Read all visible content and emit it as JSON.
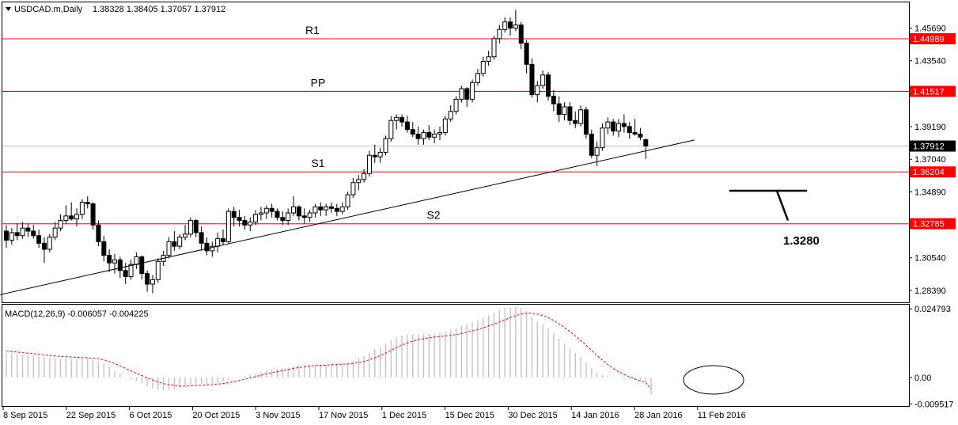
{
  "chart_data": {
    "type": "candlestick",
    "symbol_header": "USDCAD.m,Daily",
    "ohlc_header": "1.38328 1.38405 1.37057 1.37912",
    "y_ticks": [
      "1.45690",
      "1.43540",
      "1.39190",
      "1.37040",
      "1.34890",
      "1.30540",
      "1.28390"
    ],
    "x_ticks": [
      "8 Sep 2015",
      "22 Sep 2015",
      "6 Oct 2015",
      "20 Oct 2015",
      "3 Nov 2015",
      "17 Nov 2015",
      "1 Dec 2015",
      "15 Dec 2015",
      "30 Dec 2015",
      "14 Jan 2016",
      "28 Jan 2016",
      "11 Feb 2016"
    ],
    "levels": [
      {
        "name": "R1",
        "value": 1.44989,
        "tag": "1.44989",
        "color": "#ff0000"
      },
      {
        "name": "PP",
        "value": 1.41517,
        "tag": "1.41517",
        "color": "#ff0000"
      },
      {
        "name": "S1",
        "value": 1.36204,
        "tag": "1.36204",
        "color": "#ff0000"
      },
      {
        "name": "S2",
        "value": 1.32785,
        "tag": "1.32785",
        "color": "#ff0000"
      }
    ],
    "current_price": {
      "value": 1.37912,
      "tag": "1.37912",
      "color": "#000000"
    },
    "annotation": {
      "text": "1.3280",
      "value": 1.328
    },
    "trendline": {
      "from": {
        "bar": -5,
        "price": 1.278
      },
      "to": {
        "bar": 127,
        "price": 1.3831
      }
    },
    "ohlc": [
      [
        1.323,
        1.327,
        1.312,
        1.317
      ],
      [
        1.317,
        1.325,
        1.314,
        1.322
      ],
      [
        1.322,
        1.328,
        1.317,
        1.32
      ],
      [
        1.32,
        1.329,
        1.318,
        1.325
      ],
      [
        1.325,
        1.328,
        1.319,
        1.323
      ],
      [
        1.323,
        1.327,
        1.318,
        1.32
      ],
      [
        1.32,
        1.324,
        1.312,
        1.315
      ],
      [
        1.315,
        1.319,
        1.302,
        1.311
      ],
      [
        1.311,
        1.321,
        1.309,
        1.319
      ],
      [
        1.319,
        1.329,
        1.317,
        1.325
      ],
      [
        1.325,
        1.334,
        1.323,
        1.33
      ],
      [
        1.33,
        1.34,
        1.328,
        1.333
      ],
      [
        1.333,
        1.342,
        1.33,
        1.331
      ],
      [
        1.331,
        1.338,
        1.326,
        1.334
      ],
      [
        1.334,
        1.344,
        1.331,
        1.342
      ],
      [
        1.342,
        1.346,
        1.338,
        1.341
      ],
      [
        1.341,
        1.342,
        1.324,
        1.327
      ],
      [
        1.327,
        1.33,
        1.313,
        1.316
      ],
      [
        1.316,
        1.32,
        1.303,
        1.307
      ],
      [
        1.307,
        1.311,
        1.296,
        1.302
      ],
      [
        1.302,
        1.308,
        1.295,
        1.304
      ],
      [
        1.304,
        1.306,
        1.292,
        1.297
      ],
      [
        1.297,
        1.302,
        1.288,
        1.293
      ],
      [
        1.293,
        1.304,
        1.291,
        1.301
      ],
      [
        1.301,
        1.309,
        1.298,
        1.306
      ],
      [
        1.306,
        1.307,
        1.291,
        1.295
      ],
      [
        1.295,
        1.297,
        1.283,
        1.288
      ],
      [
        1.288,
        1.294,
        1.282,
        1.291
      ],
      [
        1.291,
        1.305,
        1.289,
        1.303
      ],
      [
        1.303,
        1.31,
        1.3,
        1.307
      ],
      [
        1.307,
        1.319,
        1.305,
        1.316
      ],
      [
        1.316,
        1.323,
        1.31,
        1.313
      ],
      [
        1.313,
        1.321,
        1.311,
        1.319
      ],
      [
        1.319,
        1.327,
        1.317,
        1.321
      ],
      [
        1.321,
        1.332,
        1.319,
        1.33
      ],
      [
        1.33,
        1.331,
        1.319,
        1.322
      ],
      [
        1.322,
        1.326,
        1.31,
        1.315
      ],
      [
        1.315,
        1.319,
        1.307,
        1.31
      ],
      [
        1.31,
        1.316,
        1.306,
        1.313
      ],
      [
        1.313,
        1.322,
        1.309,
        1.318
      ],
      [
        1.318,
        1.324,
        1.314,
        1.316
      ],
      [
        1.316,
        1.338,
        1.315,
        1.336
      ],
      [
        1.336,
        1.339,
        1.326,
        1.332
      ],
      [
        1.332,
        1.337,
        1.326,
        1.33
      ],
      [
        1.33,
        1.333,
        1.324,
        1.327
      ],
      [
        1.327,
        1.332,
        1.323,
        1.329
      ],
      [
        1.329,
        1.337,
        1.327,
        1.334
      ],
      [
        1.334,
        1.339,
        1.33,
        1.335
      ],
      [
        1.335,
        1.34,
        1.331,
        1.338
      ],
      [
        1.338,
        1.341,
        1.332,
        1.336
      ],
      [
        1.336,
        1.338,
        1.33,
        1.332
      ],
      [
        1.332,
        1.336,
        1.327,
        1.33
      ],
      [
        1.33,
        1.338,
        1.327,
        1.335
      ],
      [
        1.335,
        1.346,
        1.333,
        1.339
      ],
      [
        1.339,
        1.34,
        1.33,
        1.333
      ],
      [
        1.333,
        1.338,
        1.328,
        1.332
      ],
      [
        1.332,
        1.337,
        1.329,
        1.335
      ],
      [
        1.335,
        1.341,
        1.332,
        1.339
      ],
      [
        1.339,
        1.342,
        1.333,
        1.337
      ],
      [
        1.337,
        1.341,
        1.333,
        1.339
      ],
      [
        1.339,
        1.342,
        1.335,
        1.338
      ],
      [
        1.338,
        1.341,
        1.333,
        1.336
      ],
      [
        1.336,
        1.342,
        1.334,
        1.339
      ],
      [
        1.339,
        1.349,
        1.337,
        1.347
      ],
      [
        1.347,
        1.358,
        1.345,
        1.355
      ],
      [
        1.355,
        1.36,
        1.35,
        1.357
      ],
      [
        1.357,
        1.364,
        1.355,
        1.361
      ],
      [
        1.361,
        1.376,
        1.359,
        1.373
      ],
      [
        1.373,
        1.38,
        1.368,
        1.372
      ],
      [
        1.372,
        1.378,
        1.368,
        1.375
      ],
      [
        1.375,
        1.386,
        1.373,
        1.384
      ],
      [
        1.384,
        1.399,
        1.382,
        1.396
      ],
      [
        1.396,
        1.4,
        1.39,
        1.398
      ],
      [
        1.398,
        1.4,
        1.392,
        1.395
      ],
      [
        1.395,
        1.399,
        1.388,
        1.39
      ],
      [
        1.39,
        1.395,
        1.385,
        1.387
      ],
      [
        1.387,
        1.392,
        1.38,
        1.384
      ],
      [
        1.384,
        1.39,
        1.38,
        1.388
      ],
      [
        1.388,
        1.393,
        1.383,
        1.385
      ],
      [
        1.385,
        1.39,
        1.381,
        1.387
      ],
      [
        1.387,
        1.392,
        1.383,
        1.388
      ],
      [
        1.388,
        1.399,
        1.386,
        1.397
      ],
      [
        1.397,
        1.406,
        1.395,
        1.402
      ],
      [
        1.402,
        1.412,
        1.4,
        1.41
      ],
      [
        1.41,
        1.419,
        1.408,
        1.417
      ],
      [
        1.417,
        1.418,
        1.405,
        1.41
      ],
      [
        1.41,
        1.423,
        1.408,
        1.421
      ],
      [
        1.421,
        1.43,
        1.419,
        1.427
      ],
      [
        1.427,
        1.438,
        1.425,
        1.435
      ],
      [
        1.435,
        1.442,
        1.432,
        1.438
      ],
      [
        1.438,
        1.452,
        1.436,
        1.45
      ],
      [
        1.45,
        1.459,
        1.447,
        1.456
      ],
      [
        1.456,
        1.464,
        1.454,
        1.461
      ],
      [
        1.461,
        1.464,
        1.452,
        1.457
      ],
      [
        1.457,
        1.469,
        1.455,
        1.459
      ],
      [
        1.459,
        1.461,
        1.443,
        1.447
      ],
      [
        1.447,
        1.449,
        1.427,
        1.433
      ],
      [
        1.433,
        1.437,
        1.411,
        1.413
      ],
      [
        1.413,
        1.422,
        1.408,
        1.419
      ],
      [
        1.419,
        1.429,
        1.417,
        1.426
      ],
      [
        1.426,
        1.428,
        1.409,
        1.412
      ],
      [
        1.412,
        1.416,
        1.402,
        1.407
      ],
      [
        1.407,
        1.412,
        1.395,
        1.4
      ],
      [
        1.4,
        1.408,
        1.396,
        1.405
      ],
      [
        1.405,
        1.408,
        1.393,
        1.396
      ],
      [
        1.396,
        1.402,
        1.391,
        1.394
      ],
      [
        1.394,
        1.406,
        1.392,
        1.403
      ],
      [
        1.403,
        1.405,
        1.384,
        1.387
      ],
      [
        1.387,
        1.39,
        1.371,
        1.373
      ],
      [
        1.373,
        1.382,
        1.366,
        1.378
      ],
      [
        1.378,
        1.394,
        1.376,
        1.391
      ],
      [
        1.391,
        1.398,
        1.387,
        1.395
      ],
      [
        1.395,
        1.397,
        1.386,
        1.389
      ],
      [
        1.389,
        1.397,
        1.385,
        1.394
      ],
      [
        1.394,
        1.4,
        1.388,
        1.392
      ],
      [
        1.392,
        1.395,
        1.384,
        1.388
      ],
      [
        1.388,
        1.397,
        1.386,
        1.387
      ],
      [
        1.387,
        1.391,
        1.383,
        1.385
      ],
      [
        1.3833,
        1.3841,
        1.3706,
        1.3791
      ]
    ],
    "macd_header": "MACD(12,26,9) -0.006057 -0.004225",
    "macd_ticks": [
      "0.024793",
      "0.00",
      "-0.009517"
    ],
    "macd_hist": [
      0.0088,
      0.0087,
      0.0085,
      0.0083,
      0.0081,
      0.0079,
      0.0077,
      0.0074,
      0.0071,
      0.0069,
      0.0068,
      0.0068,
      0.0067,
      0.0066,
      0.0067,
      0.0068,
      0.0065,
      0.0059,
      0.005,
      0.0038,
      0.0025,
      0.0013,
      0.0002,
      -0.0008,
      -0.0014,
      -0.0021,
      -0.0031,
      -0.004,
      -0.0044,
      -0.0045,
      -0.0042,
      -0.0041,
      -0.0037,
      -0.0033,
      -0.0027,
      -0.0024,
      -0.0023,
      -0.0024,
      -0.0022,
      -0.0018,
      -0.0016,
      -0.0009,
      -0.0003,
      0.0002,
      0.0006,
      0.001,
      0.0015,
      0.002,
      0.0025,
      0.0029,
      0.0031,
      0.0033,
      0.0036,
      0.0041,
      0.0042,
      0.0043,
      0.0044,
      0.0045,
      0.0046,
      0.0047,
      0.0048,
      0.0048,
      0.0049,
      0.0053,
      0.006,
      0.0068,
      0.0077,
      0.009,
      0.0101,
      0.011,
      0.0121,
      0.0134,
      0.0145,
      0.0152,
      0.0155,
      0.0156,
      0.0156,
      0.0157,
      0.0157,
      0.0158,
      0.0159,
      0.0164,
      0.0171,
      0.0179,
      0.0188,
      0.0191,
      0.0199,
      0.0207,
      0.0216,
      0.0224,
      0.0234,
      0.0242,
      0.025,
      0.0253,
      0.0256,
      0.025,
      0.0239,
      0.0219,
      0.0202,
      0.0192,
      0.0177,
      0.016,
      0.014,
      0.0124,
      0.0107,
      0.0089,
      0.0075,
      0.0054,
      0.0033,
      0.0017,
      0.001,
      0.0006,
      0.0002,
      -0.0001,
      -0.0004,
      -0.0006,
      -0.0009,
      -0.0012,
      -0.0015,
      -0.0061
    ],
    "macd_signal": [
      0.0096,
      0.0094,
      0.0092,
      0.009,
      0.0088,
      0.0086,
      0.0084,
      0.0082,
      0.008,
      0.0078,
      0.0076,
      0.0075,
      0.0074,
      0.0073,
      0.0072,
      0.0071,
      0.007,
      0.0068,
      0.0064,
      0.0058,
      0.005,
      0.0042,
      0.0033,
      0.0024,
      0.0015,
      0.0007,
      -0.0001,
      -0.0009,
      -0.0016,
      -0.0022,
      -0.0026,
      -0.0029,
      -0.0031,
      -0.0031,
      -0.003,
      -0.0029,
      -0.0028,
      -0.0027,
      -0.0026,
      -0.0024,
      -0.0022,
      -0.0019,
      -0.0015,
      -0.0011,
      -0.0006,
      -0.0002,
      0.0003,
      0.0008,
      0.0013,
      0.0017,
      0.0021,
      0.0025,
      0.0029,
      0.0033,
      0.0036,
      0.0039,
      0.0041,
      0.0043,
      0.0044,
      0.0045,
      0.0046,
      0.0047,
      0.0048,
      0.0049,
      0.0051,
      0.0054,
      0.0058,
      0.0064,
      0.0071,
      0.0079,
      0.0088,
      0.0098,
      0.0108,
      0.0117,
      0.0125,
      0.0131,
      0.0136,
      0.014,
      0.0143,
      0.0146,
      0.0148,
      0.015,
      0.0152,
      0.0155,
      0.0159,
      0.0163,
      0.0168,
      0.0173,
      0.0179,
      0.0186,
      0.0193,
      0.02,
      0.0208,
      0.0216,
      0.0223,
      0.0229,
      0.0232,
      0.0232,
      0.0229,
      0.0224,
      0.0216,
      0.0206,
      0.0194,
      0.018,
      0.0166,
      0.015,
      0.0134,
      0.0117,
      0.0098,
      0.008,
      0.0063,
      0.0047,
      0.0033,
      0.0021,
      0.0011,
      0.0002,
      -0.0005,
      -0.0012,
      -0.0018,
      -0.0042
    ]
  }
}
